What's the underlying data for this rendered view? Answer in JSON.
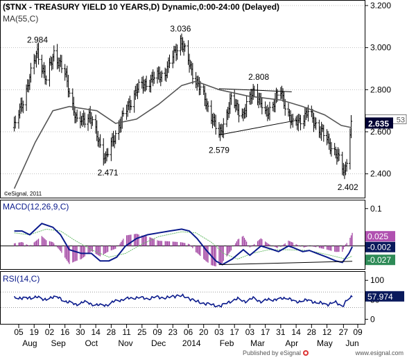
{
  "chart_data": [
    {
      "type": "ohlc",
      "title": "($TNX - TREASURY YIELD 10 YEARS,D) Dynamic,0:00-24:00 (Delayed)",
      "overlay_label": "MA(55,C)",
      "copyright": "©eSignal, 2011",
      "ylim": [
        2.3,
        3.2
      ],
      "y_ticks": [
        "3.200",
        "3.000",
        "2.800",
        "2.600",
        "2.400"
      ],
      "last_value": "2.635",
      "last_value_partial": "53",
      "anchors": [
        {
          "d": "Aug 01",
          "v": 2.62
        },
        {
          "d": "Aug 12",
          "v": 2.8
        },
        {
          "d": "Aug 22",
          "v": 2.984
        },
        {
          "d": "Aug 30",
          "v": 2.84
        },
        {
          "d": "Sep 06",
          "v": 2.98
        },
        {
          "d": "Sep 17",
          "v": 2.86
        },
        {
          "d": "Sep 27",
          "v": 2.64
        },
        {
          "d": "Oct 08",
          "v": 2.68
        },
        {
          "d": "Oct 23",
          "v": 2.471
        },
        {
          "d": "Nov 04",
          "v": 2.63
        },
        {
          "d": "Nov 20",
          "v": 2.8
        },
        {
          "d": "Dec 04",
          "v": 2.85
        },
        {
          "d": "Dec 16",
          "v": 2.88
        },
        {
          "d": "Dec 30",
          "v": 3.036
        },
        {
          "d": "Jan 10",
          "v": 2.88
        },
        {
          "d": "Jan 24",
          "v": 2.72
        },
        {
          "d": "Feb 03",
          "v": 2.579
        },
        {
          "d": "Feb 14",
          "v": 2.75
        },
        {
          "d": "Feb 25",
          "v": 2.68
        },
        {
          "d": "Mar 07",
          "v": 2.808
        },
        {
          "d": "Mar 17",
          "v": 2.68
        },
        {
          "d": "Mar 31",
          "v": 2.79
        },
        {
          "d": "Apr 11",
          "v": 2.63
        },
        {
          "d": "Apr 25",
          "v": 2.69
        },
        {
          "d": "May 07",
          "v": 2.6
        },
        {
          "d": "May 20",
          "v": 2.5
        },
        {
          "d": "May 28",
          "v": 2.402
        },
        {
          "d": "Jun 03",
          "v": 2.635
        }
      ],
      "ma": [
        {
          "d": "Aug 01",
          "v": 2.33
        },
        {
          "d": "Aug 20",
          "v": 2.55
        },
        {
          "d": "Sep 05",
          "v": 2.7
        },
        {
          "d": "Sep 20",
          "v": 2.72
        },
        {
          "d": "Oct 15",
          "v": 2.7
        },
        {
          "d": "Nov 01",
          "v": 2.64
        },
        {
          "d": "Nov 20",
          "v": 2.66
        },
        {
          "d": "Dec 10",
          "v": 2.73
        },
        {
          "d": "Dec 31",
          "v": 2.82
        },
        {
          "d": "Jan 13",
          "v": 2.84
        },
        {
          "d": "Feb 03",
          "v": 2.8
        },
        {
          "d": "Mar 01",
          "v": 2.77
        },
        {
          "d": "Apr 01",
          "v": 2.75
        },
        {
          "d": "Apr 20",
          "v": 2.72
        },
        {
          "d": "May 10",
          "v": 2.68
        },
        {
          "d": "May 25",
          "v": 2.63
        },
        {
          "d": "Jun 03",
          "v": 2.62
        }
      ],
      "annotations": [
        {
          "label": "2.984",
          "d": "Aug 22",
          "v": 2.984,
          "pos": "above"
        },
        {
          "label": "3.036",
          "d": "Dec 30",
          "v": 3.036,
          "pos": "above"
        },
        {
          "label": "2.808",
          "d": "Mar 11",
          "v": 2.808,
          "pos": "above"
        },
        {
          "label": "2.471",
          "d": "Oct 25",
          "v": 2.471,
          "pos": "below"
        },
        {
          "label": "2.579",
          "d": "Feb 03",
          "v": 2.579,
          "pos": "below"
        },
        {
          "label": "2.402",
          "d": "May 31",
          "v": 2.402,
          "pos": "below"
        }
      ],
      "trendlines": [
        {
          "from": {
            "d": "Feb 03",
            "v": 2.805
          },
          "to": {
            "d": "Apr 10",
            "v": 2.79
          }
        },
        {
          "from": {
            "d": "Feb 03",
            "v": 2.585
          },
          "to": {
            "d": "Apr 15",
            "v": 2.655
          }
        }
      ]
    },
    {
      "type": "line",
      "title": "MACD(12,26,9,C)",
      "ylim": [
        -0.06,
        0.12
      ],
      "y_ticks": [
        "0.1"
      ],
      "zero_line": 0,
      "last_values": {
        "histogram": "0.025",
        "macd": "-0.002",
        "signal": "-0.027"
      },
      "macd": [
        {
          "d": "Aug 01",
          "v": 0.04
        },
        {
          "d": "Aug 08",
          "v": 0.04
        },
        {
          "d": "Aug 15",
          "v": 0.03
        },
        {
          "d": "Aug 26",
          "v": 0.06
        },
        {
          "d": "Sep 05",
          "v": 0.05
        },
        {
          "d": "Sep 12",
          "v": 0.03
        },
        {
          "d": "Sep 20",
          "v": -0.01
        },
        {
          "d": "Oct 01",
          "v": -0.02
        },
        {
          "d": "Oct 10",
          "v": -0.02
        },
        {
          "d": "Oct 18",
          "v": -0.04
        },
        {
          "d": "Oct 26",
          "v": -0.04
        },
        {
          "d": "Nov 02",
          "v": -0.03
        },
        {
          "d": "Nov 10",
          "v": 0.0
        },
        {
          "d": "Nov 20",
          "v": 0.02
        },
        {
          "d": "Nov 30",
          "v": 0.03
        },
        {
          "d": "Dec 10",
          "v": 0.035
        },
        {
          "d": "Dec 20",
          "v": 0.04
        },
        {
          "d": "Dec 31",
          "v": 0.045
        },
        {
          "d": "Jan 07",
          "v": 0.04
        },
        {
          "d": "Jan 14",
          "v": 0.02
        },
        {
          "d": "Jan 22",
          "v": -0.01
        },
        {
          "d": "Jan 31",
          "v": -0.04
        },
        {
          "d": "Feb 06",
          "v": -0.05
        },
        {
          "d": "Feb 15",
          "v": -0.035
        },
        {
          "d": "Feb 25",
          "v": -0.01
        },
        {
          "d": "Mar 03",
          "v": -0.025
        },
        {
          "d": "Mar 13",
          "v": 0.0
        },
        {
          "d": "Mar 22",
          "v": -0.008
        },
        {
          "d": "Mar 29",
          "v": -0.015
        },
        {
          "d": "Apr 07",
          "v": 0.0
        },
        {
          "d": "Apr 12",
          "v": -0.005
        },
        {
          "d": "Apr 20",
          "v": -0.015
        },
        {
          "d": "Apr 26",
          "v": -0.012
        },
        {
          "d": "May 03",
          "v": -0.02
        },
        {
          "d": "May 12",
          "v": -0.03
        },
        {
          "d": "May 20",
          "v": -0.04
        },
        {
          "d": "May 26",
          "v": -0.044
        },
        {
          "d": "Jun 01",
          "v": -0.02
        },
        {
          "d": "Jun 04",
          "v": -0.002
        }
      ],
      "signal": [
        {
          "d": "Aug 01",
          "v": 0.035
        },
        {
          "d": "Aug 15",
          "v": 0.03
        },
        {
          "d": "Aug 30",
          "v": 0.045
        },
        {
          "d": "Sep 12",
          "v": 0.04
        },
        {
          "d": "Sep 25",
          "v": 0.015
        },
        {
          "d": "Oct 10",
          "v": -0.01
        },
        {
          "d": "Oct 26",
          "v": -0.03
        },
        {
          "d": "Nov 10",
          "v": -0.02
        },
        {
          "d": "Nov 25",
          "v": 0.005
        },
        {
          "d": "Dec 10",
          "v": 0.025
        },
        {
          "d": "Dec 31",
          "v": 0.038
        },
        {
          "d": "Jan 13",
          "v": 0.035
        },
        {
          "d": "Jan 27",
          "v": 0.01
        },
        {
          "d": "Feb 07",
          "v": -0.02
        },
        {
          "d": "Feb 20",
          "v": -0.035
        },
        {
          "d": "Mar 05",
          "v": -0.02
        },
        {
          "d": "Mar 20",
          "v": -0.01
        },
        {
          "d": "Apr 05",
          "v": -0.01
        },
        {
          "d": "Apr 25",
          "v": -0.012
        },
        {
          "d": "May 15",
          "v": -0.025
        },
        {
          "d": "May 29",
          "v": -0.035
        },
        {
          "d": "Jun 04",
          "v": -0.027
        }
      ],
      "trendlines": [
        {
          "from": {
            "d": "Feb 03",
            "v": -0.05
          },
          "to": {
            "d": "Jun 04",
            "v": -0.041
          }
        }
      ]
    },
    {
      "type": "line",
      "title": "RSI(14,C)",
      "ylim": [
        -10,
        120
      ],
      "y_ticks": [
        "100",
        "50",
        "0"
      ],
      "dotted_levels": [
        70,
        30
      ],
      "last_value": "57.974",
      "rsi": [
        {
          "d": "Aug 01",
          "v": 55
        },
        {
          "d": "Aug 05",
          "v": 52
        },
        {
          "d": "Aug 10",
          "v": 58
        },
        {
          "d": "Aug 16",
          "v": 52
        },
        {
          "d": "Aug 22",
          "v": 60
        },
        {
          "d": "Aug 28",
          "v": 48
        },
        {
          "d": "Sep 04",
          "v": 58
        },
        {
          "d": "Sep 10",
          "v": 55
        },
        {
          "d": "Sep 18",
          "v": 45
        },
        {
          "d": "Sep 25",
          "v": 38
        },
        {
          "d": "Oct 02",
          "v": 44
        },
        {
          "d": "Oct 10",
          "v": 40
        },
        {
          "d": "Oct 18",
          "v": 35
        },
        {
          "d": "Oct 25",
          "v": 38
        },
        {
          "d": "Nov 02",
          "v": 48
        },
        {
          "d": "Nov 10",
          "v": 52
        },
        {
          "d": "Nov 20",
          "v": 56
        },
        {
          "d": "Nov 30",
          "v": 53
        },
        {
          "d": "Dec 08",
          "v": 57
        },
        {
          "d": "Dec 18",
          "v": 55
        },
        {
          "d": "Dec 28",
          "v": 62
        },
        {
          "d": "Jan 06",
          "v": 55
        },
        {
          "d": "Jan 14",
          "v": 45
        },
        {
          "d": "Jan 22",
          "v": 40
        },
        {
          "d": "Jan 30",
          "v": 36
        },
        {
          "d": "Feb 05",
          "v": 34
        },
        {
          "d": "Feb 12",
          "v": 45
        },
        {
          "d": "Feb 20",
          "v": 52
        },
        {
          "d": "Feb 28",
          "v": 46
        },
        {
          "d": "Mar 07",
          "v": 55
        },
        {
          "d": "Mar 14",
          "v": 44
        },
        {
          "d": "Mar 21",
          "v": 52
        },
        {
          "d": "Mar 30",
          "v": 50
        },
        {
          "d": "Apr 06",
          "v": 58
        },
        {
          "d": "Apr 13",
          "v": 42
        },
        {
          "d": "Apr 20",
          "v": 50
        },
        {
          "d": "Apr 28",
          "v": 46
        },
        {
          "d": "May 05",
          "v": 42
        },
        {
          "d": "May 12",
          "v": 38
        },
        {
          "d": "May 19",
          "v": 44
        },
        {
          "d": "May 26",
          "v": 34
        },
        {
          "d": "May 30",
          "v": 48
        },
        {
          "d": "Jun 04",
          "v": 58
        }
      ]
    }
  ],
  "x_axis": {
    "day_ticks": [
      "05",
      "19",
      "02",
      "16",
      "30",
      "14",
      "28",
      "11",
      "25",
      "09",
      "23",
      "06",
      "20",
      "03",
      "17",
      "03",
      "17",
      "31",
      "14",
      "28",
      "12",
      "27",
      "09"
    ],
    "day_tick_dates": [
      "Aug 05",
      "Aug 19",
      "Sep 02",
      "Sep 16",
      "Sep 30",
      "Oct 14",
      "Oct 28",
      "Nov 11",
      "Nov 25",
      "Dec 09",
      "Dec 23",
      "Jan 06",
      "Jan 20",
      "Feb 03",
      "Feb 17",
      "Mar 03",
      "Mar 17",
      "Mar 31",
      "Apr 14",
      "Apr 28",
      "May 12",
      "May 27",
      "Jun 09"
    ],
    "month_labels": [
      "Aug",
      "Sep",
      "Oct",
      "Nov",
      "Dec",
      "2014",
      "Feb",
      "Mar",
      "Apr",
      "May",
      "Jun"
    ],
    "month_dates": [
      "Aug 15",
      "Sep 10",
      "Oct 10",
      "Nov 10",
      "Dec 10",
      "Jan 09",
      "Feb 10",
      "Mar 10",
      "Apr 10",
      "May 10",
      "Jun 04"
    ]
  },
  "footer": {
    "published": "Published by eSignal",
    "site": "www.esignal.com"
  }
}
